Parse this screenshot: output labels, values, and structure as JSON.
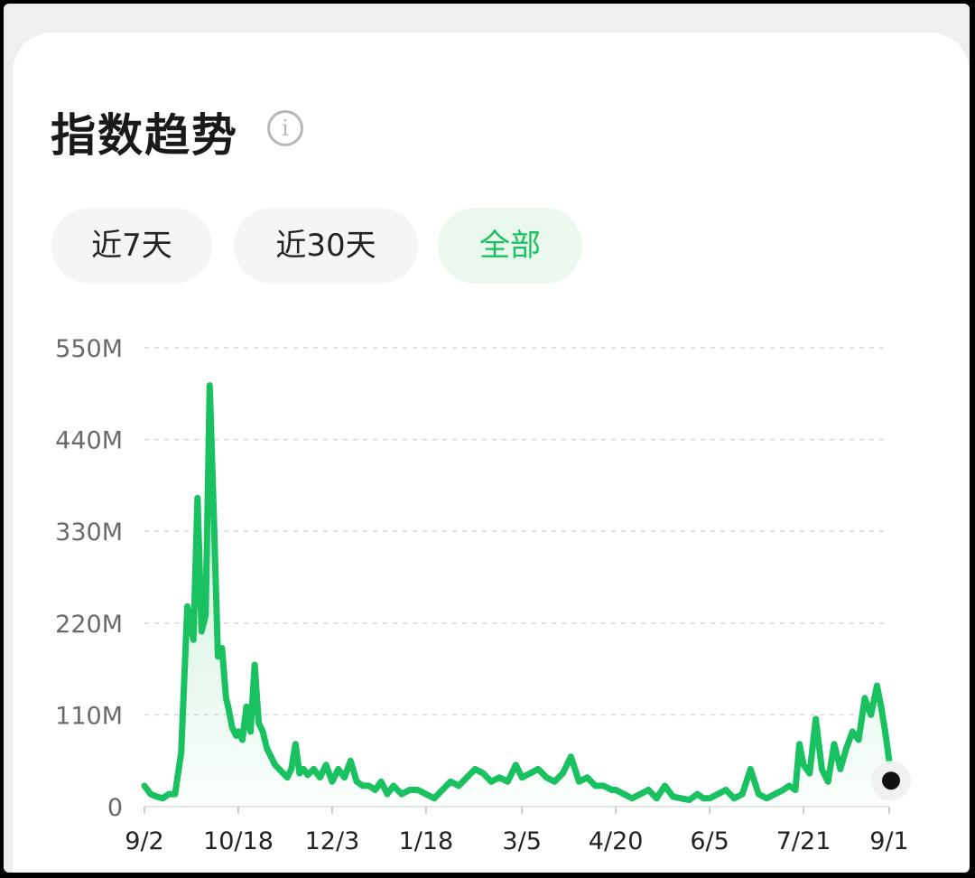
{
  "header": {
    "title": "指数趋势",
    "info_icon": "info-circle-icon"
  },
  "tabs": [
    {
      "label": "近7天",
      "active": false
    },
    {
      "label": "近30天",
      "active": false
    },
    {
      "label": "全部",
      "active": true
    }
  ],
  "colors": {
    "line": "#19c160",
    "active_tab_bg": "#eaf8ee",
    "marker": "#111111"
  },
  "chart_data": {
    "type": "area",
    "y_unit": "M",
    "ylim": [
      0,
      550
    ],
    "yticks": [
      0,
      110,
      220,
      330,
      440,
      550
    ],
    "ytick_labels": [
      "0",
      "110M",
      "220M",
      "330M",
      "440M",
      "550M"
    ],
    "xlim": [
      "9/2",
      "9/1"
    ],
    "xticks": [
      "9/2",
      "10/18",
      "12/3",
      "1/18",
      "3/5",
      "4/20",
      "6/5",
      "7/21",
      "9/1"
    ],
    "grid": true,
    "legend": "none",
    "series": [
      {
        "x": [
          "9/2",
          "9/5",
          "9/8",
          "9/11",
          "9/14",
          "9/17",
          "9/20",
          "9/23",
          "9/26",
          "9/28",
          "9/30",
          "10/2",
          "10/4",
          "10/6",
          "10/8",
          "10/10",
          "10/12",
          "10/13",
          "10/15",
          "10/17",
          "10/18",
          "10/20",
          "10/22",
          "10/24",
          "10/26",
          "10/28",
          "10/30",
          "11/1",
          "11/3",
          "11/5",
          "11/7",
          "11/9",
          "11/11",
          "11/13",
          "11/15",
          "11/17",
          "11/19",
          "11/21",
          "11/24",
          "11/27",
          "11/30",
          "12/3",
          "12/6",
          "12/9",
          "12/12",
          "12/15",
          "12/18",
          "12/21",
          "12/24",
          "12/27",
          "12/30",
          "1/2",
          "1/6",
          "1/10",
          "1/14",
          "1/18",
          "1/22",
          "1/26",
          "1/30",
          "2/3",
          "2/7",
          "2/11",
          "2/15",
          "2/19",
          "2/23",
          "2/27",
          "3/2",
          "3/5",
          "3/9",
          "3/13",
          "3/17",
          "3/21",
          "3/25",
          "3/29",
          "4/2",
          "4/6",
          "4/10",
          "4/14",
          "4/18",
          "4/20",
          "4/24",
          "4/28",
          "5/2",
          "5/6",
          "5/10",
          "5/14",
          "5/18",
          "5/22",
          "5/26",
          "5/30",
          "6/2",
          "6/5",
          "6/9",
          "6/13",
          "6/17",
          "6/21",
          "6/25",
          "6/29",
          "7/3",
          "7/7",
          "7/11",
          "7/14",
          "7/17",
          "7/19",
          "7/21",
          "7/24",
          "7/27",
          "7/30",
          "8/2",
          "8/5",
          "8/8",
          "8/11",
          "8/14",
          "8/17",
          "8/20",
          "8/23",
          "8/26",
          "8/28",
          "8/30",
          "9/1"
        ],
        "values": [
          25,
          15,
          12,
          10,
          15,
          15,
          65,
          240,
          200,
          370,
          210,
          230,
          505,
          350,
          180,
          190,
          130,
          120,
          95,
          85,
          90,
          80,
          120,
          90,
          170,
          100,
          90,
          70,
          60,
          50,
          45,
          40,
          35,
          45,
          75,
          40,
          45,
          38,
          45,
          35,
          50,
          30,
          45,
          35,
          55,
          30,
          25,
          25,
          20,
          30,
          15,
          25,
          15,
          20,
          20,
          15,
          10,
          20,
          30,
          25,
          35,
          45,
          40,
          30,
          35,
          30,
          50,
          35,
          40,
          45,
          35,
          30,
          40,
          60,
          30,
          35,
          25,
          25,
          20,
          20,
          15,
          10,
          15,
          20,
          10,
          25,
          12,
          10,
          8,
          15,
          10,
          10,
          15,
          20,
          10,
          15,
          45,
          15,
          10,
          15,
          20,
          25,
          20,
          75,
          50,
          40,
          105,
          45,
          30,
          75,
          45,
          70,
          90,
          80,
          130,
          110,
          145,
          120,
          90,
          55
        ]
      }
    ]
  }
}
